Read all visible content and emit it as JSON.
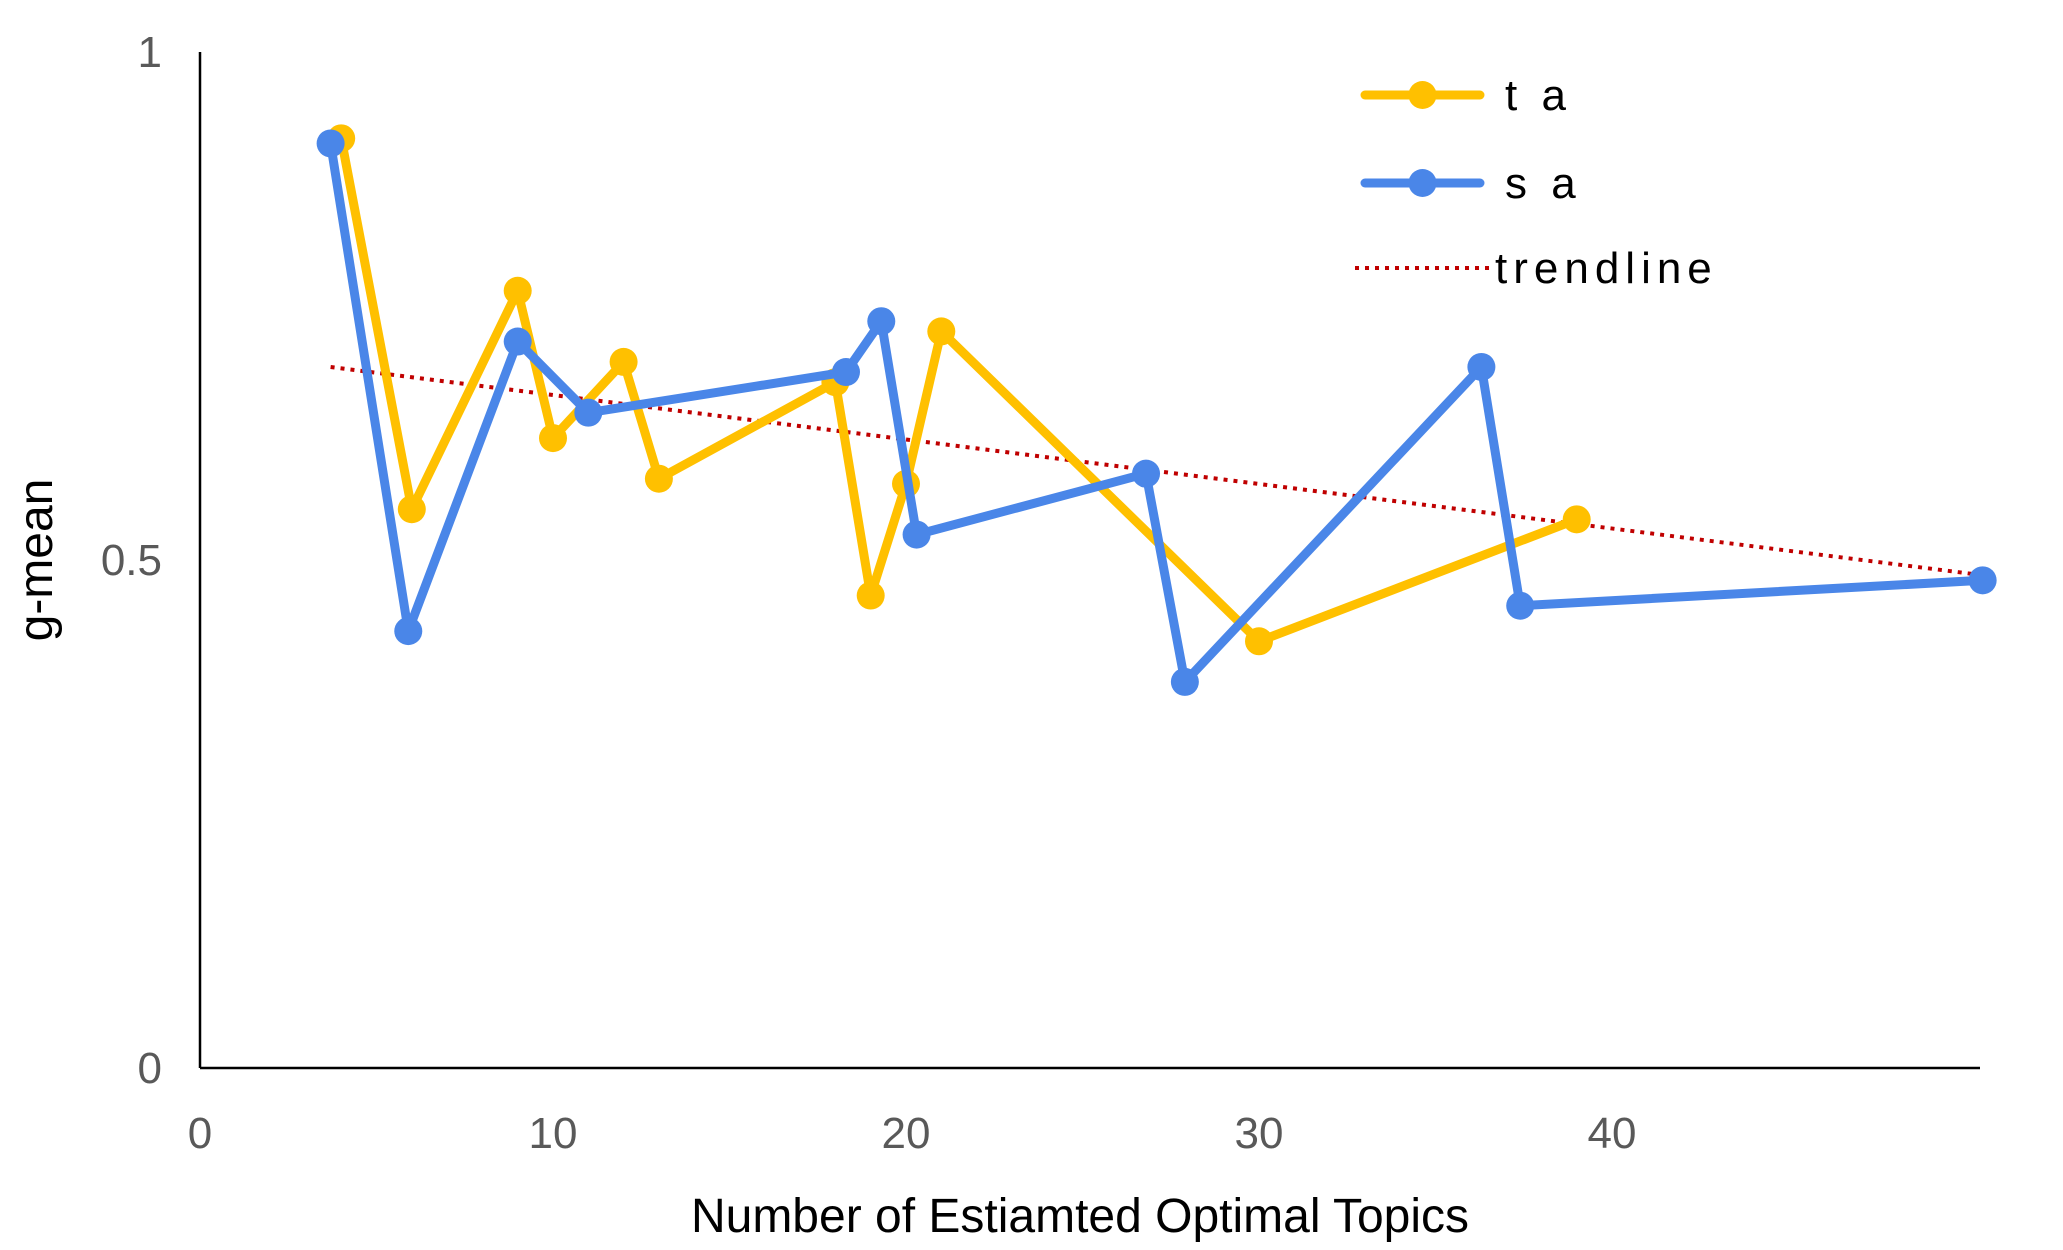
{
  "chart_data": {
    "type": "line",
    "title": "",
    "xlabel": "Number of Estiamted Optimal Topics",
    "ylabel": "g-mean",
    "xlim": [
      0,
      50
    ],
    "ylim": [
      0,
      1
    ],
    "xticks": [
      0,
      10,
      20,
      30,
      40
    ],
    "xtick_labels": [
      "0",
      "10",
      "20",
      "30",
      "40"
    ],
    "yticks": [
      0,
      0.5,
      1
    ],
    "ytick_labels": [
      "0",
      "0.5",
      "1"
    ],
    "legend_position": "top-right",
    "series": [
      {
        "name": "t a",
        "color": "#FFC000",
        "marker": "circle",
        "x": [
          4,
          6,
          9,
          10,
          12,
          13,
          18,
          19,
          20,
          21,
          30,
          39
        ],
        "y": [
          0.915,
          0.55,
          0.765,
          0.62,
          0.695,
          0.58,
          0.675,
          0.465,
          0.575,
          0.725,
          0.42,
          0.54
        ]
      },
      {
        "name": "s a",
        "color": "#4A86E8",
        "marker": "circle",
        "x": [
          3.7,
          5.9,
          9,
          11,
          18.3,
          19.3,
          20.3,
          26.8,
          27.9,
          36.3,
          37.4,
          50.5
        ],
        "y": [
          0.91,
          0.43,
          0.715,
          0.645,
          0.685,
          0.735,
          0.525,
          0.585,
          0.38,
          0.69,
          0.455,
          0.48
        ]
      },
      {
        "name": "trendline",
        "color": "#C00000",
        "style": "dotted",
        "x": [
          3.7,
          50.5
        ],
        "y": [
          0.69,
          0.485
        ]
      }
    ]
  }
}
